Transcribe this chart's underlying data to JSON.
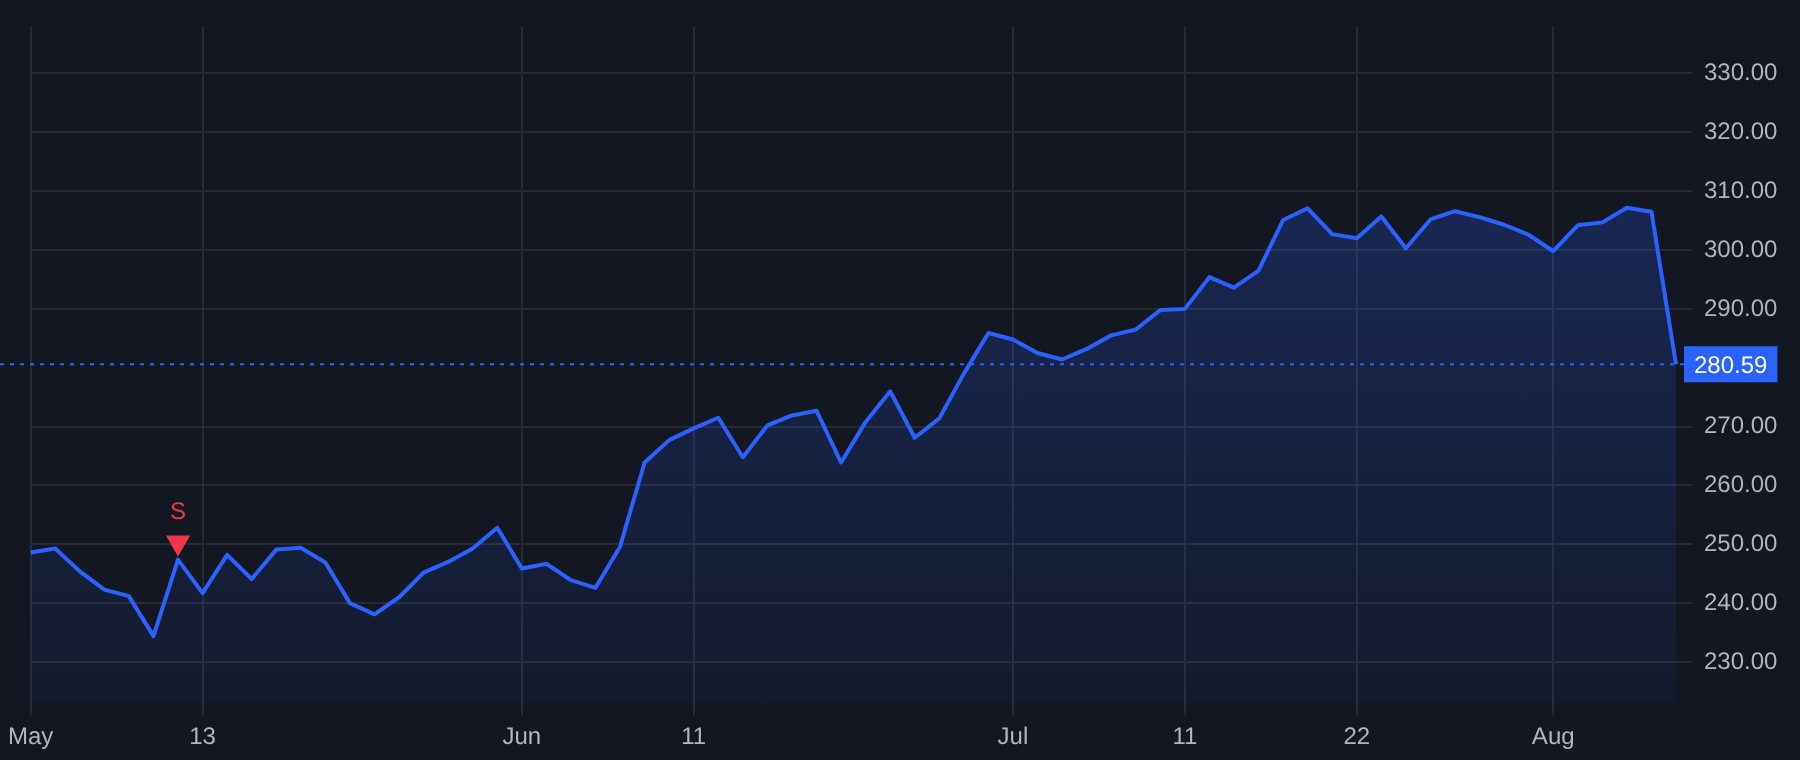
{
  "chart_data": {
    "type": "area",
    "categories": [
      "May",
      null,
      null,
      null,
      null,
      null,
      null,
      "13",
      null,
      null,
      null,
      null,
      null,
      null,
      null,
      null,
      null,
      null,
      null,
      null,
      "Jun",
      null,
      null,
      null,
      null,
      null,
      null,
      "11",
      null,
      null,
      null,
      null,
      null,
      null,
      null,
      null,
      null,
      null,
      null,
      null,
      "Jul",
      null,
      null,
      null,
      null,
      null,
      null,
      "11",
      null,
      null,
      null,
      null,
      null,
      null,
      "22",
      null,
      null,
      null,
      null,
      null,
      null,
      null,
      "Aug",
      null,
      null,
      null,
      null,
      null
    ],
    "series": [
      {
        "color": "#2962ff",
        "values": [
          248.6,
          249.3,
          245.4,
          242.3,
          241.2,
          234.4,
          247.4,
          241.7,
          248.2,
          244.1,
          249.1,
          249.4,
          246.9,
          240.0,
          238.1,
          241.0,
          245.2,
          247.0,
          249.3,
          252.8,
          245.9,
          246.7,
          243.9,
          242.6,
          249.6,
          263.9,
          267.7,
          269.7,
          271.5,
          264.8,
          270.2,
          271.9,
          272.7,
          263.9,
          270.8,
          276.0,
          268.1,
          271.4,
          279.0,
          285.9,
          284.8,
          282.5,
          281.4,
          283.2,
          285.5,
          286.5,
          289.8,
          290.0,
          295.4,
          293.6,
          296.5,
          305.1,
          307.1,
          302.7,
          302.0,
          305.7,
          300.3,
          305.2,
          306.6,
          305.6,
          304.3,
          302.6,
          299.8,
          304.2,
          304.7,
          307.2,
          306.5,
          280.59
        ]
      },
      {
        "type": "scatter",
        "name": "S",
        "color": "#f23645",
        "marker": "triangle",
        "values": [
          null,
          null,
          null,
          null,
          null,
          null,
          250.3,
          null,
          null,
          null,
          null,
          null,
          null,
          null,
          null,
          null,
          null,
          null,
          null,
          null,
          null,
          null,
          null,
          null,
          null,
          null,
          null,
          null,
          null,
          null,
          null,
          null,
          null,
          null,
          null,
          null,
          null,
          null,
          null,
          null,
          null,
          null,
          null,
          null,
          null,
          null,
          null,
          null,
          null,
          null,
          null,
          null,
          null,
          null,
          null,
          null,
          null,
          null,
          null,
          null,
          null,
          null,
          null,
          null,
          null,
          null,
          null,
          null
        ]
      }
    ],
    "ylim": [
      223,
      338
    ],
    "yticks": [
      {
        "value": 230,
        "label": "230.00"
      },
      {
        "value": 240,
        "label": "240.00"
      },
      {
        "value": 250,
        "label": "250.00"
      },
      {
        "value": 260,
        "label": "260.00"
      },
      {
        "value": 270,
        "label": "270.00"
      },
      {
        "value": 290,
        "label": "290.00"
      },
      {
        "value": 300,
        "label": "300.00"
      },
      {
        "value": 310,
        "label": "310.00"
      },
      {
        "value": 320,
        "label": "320.00"
      },
      {
        "value": 330,
        "label": "330.00"
      }
    ],
    "ref_lines": [
      {
        "axis": "y",
        "value": 280.59,
        "label": "280.59",
        "color": "#2962ff",
        "line_style": "dotted"
      }
    ],
    "grid": true,
    "legend": false
  }
}
